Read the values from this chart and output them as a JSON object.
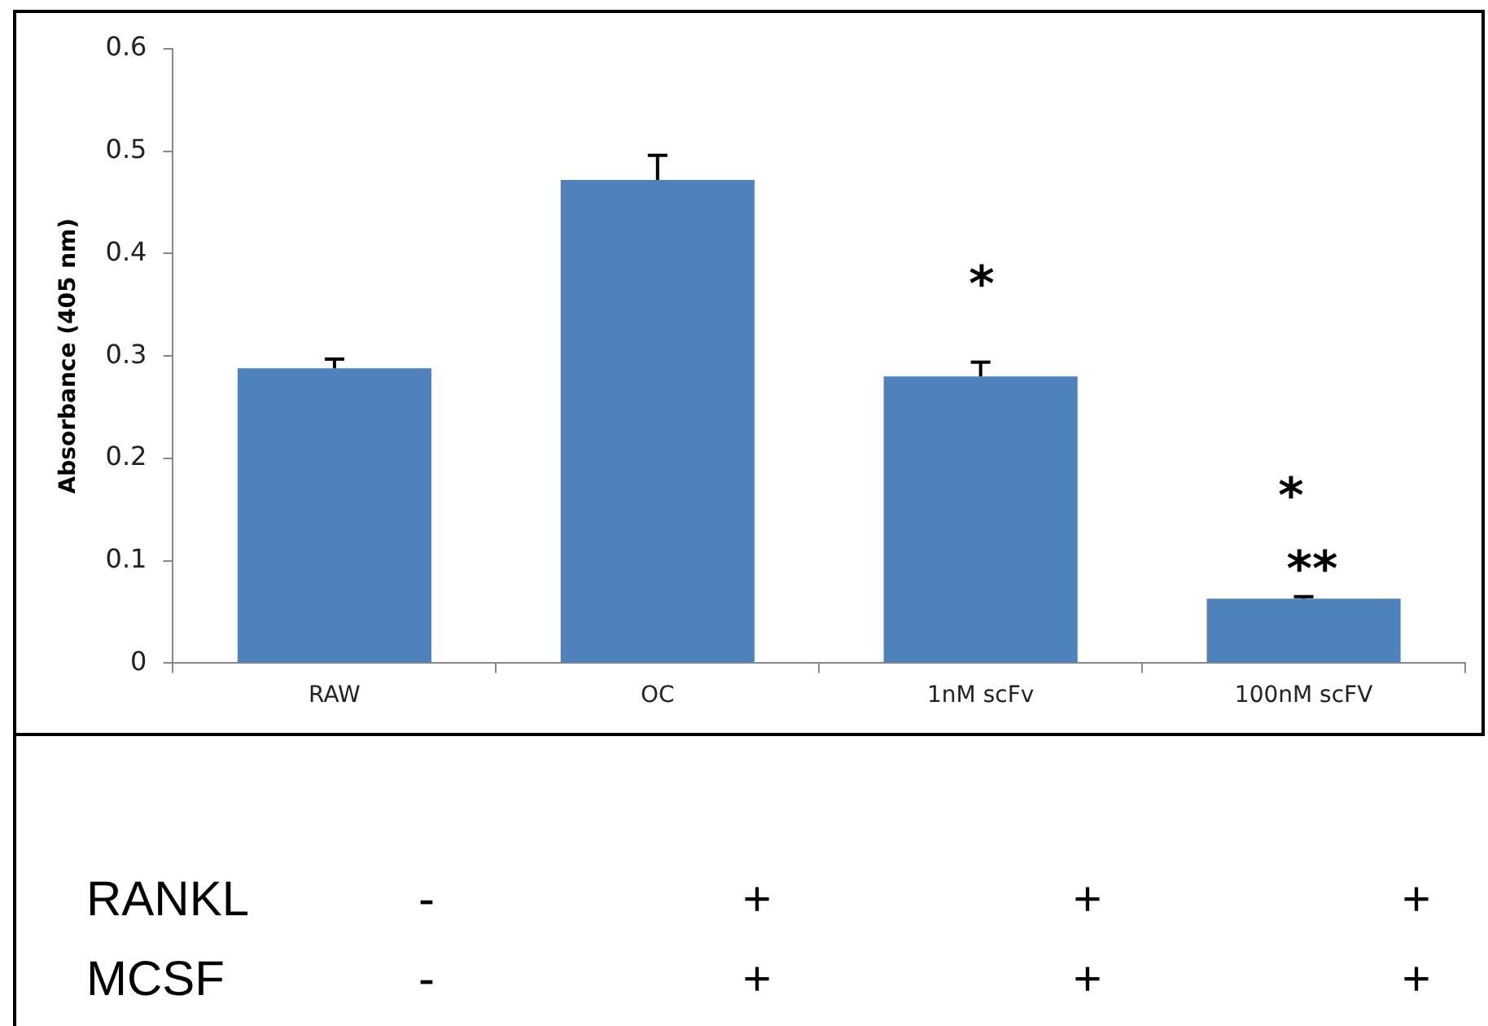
{
  "chart_data": {
    "type": "bar",
    "ylabel": "Absorbance (405 nm)",
    "categories": [
      "RAW",
      "OC",
      "1nM scFv",
      "100nM scFV"
    ],
    "values": [
      0.288,
      0.472,
      0.28,
      0.063
    ],
    "errors": [
      [
        0.288,
        0.297
      ],
      [
        0.472,
        0.496
      ],
      [
        0.28,
        0.294
      ],
      [
        0.063,
        0.065
      ]
    ],
    "color": "#4f81bd",
    "ylim": [
      0,
      0.6
    ],
    "yticks": [
      0,
      0.1,
      0.2,
      0.3,
      0.4,
      0.5,
      0.6
    ],
    "grid": false,
    "legend": false,
    "annotations": [
      "*",
      "*",
      "**",
      "RANKL",
      "-",
      "+",
      "+",
      "+",
      "MCSF",
      "-",
      "+",
      "+",
      "+"
    ]
  }
}
